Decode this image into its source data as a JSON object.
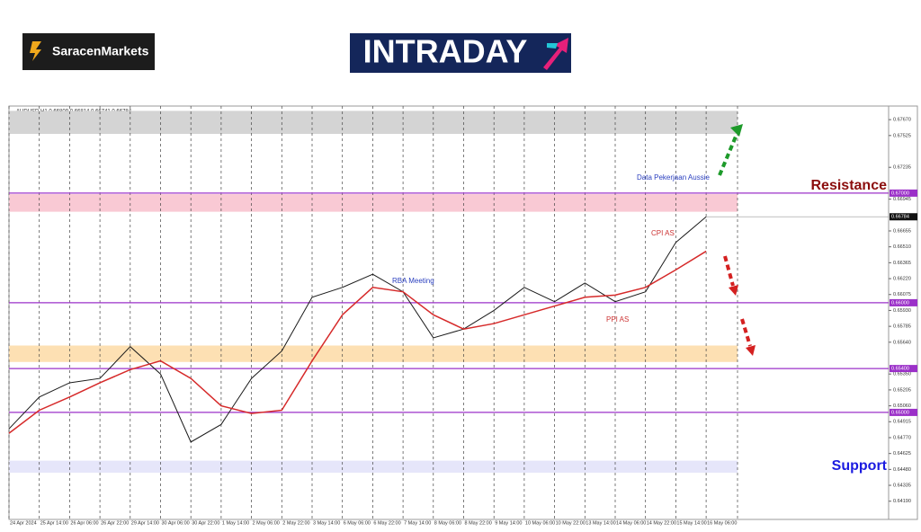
{
  "header": {
    "brand": "SaracenMarkets",
    "logo": "INTRADAY"
  },
  "chart_data": {
    "type": "line",
    "title": "AUDUSD,H1 0.66809 0.66814 0.66741 0.66784",
    "categories": [
      "24 Apr 2024",
      "25 Apr 14:00",
      "26 Apr 06:00",
      "26 Apr 22:00",
      "29 Apr 14:00",
      "30 Apr 06:00",
      "30 Apr 22:00",
      "1 May 14:00",
      "2 May 06:00",
      "2 May 22:00",
      "3 May 14:00",
      "6 May 06:00",
      "6 May 22:00",
      "7 May 14:00",
      "8 May 06:00",
      "8 May 22:00",
      "9 May 14:00",
      "10 May 06:00",
      "10 May 22:00",
      "13 May 14:00",
      "14 May 06:00",
      "14 May 22:00",
      "15 May 14:00",
      "16 May 06:00"
    ],
    "series": [
      {
        "name": "AUDUSD",
        "color": "#1a1a1a",
        "values": [
          0.6485,
          0.6514,
          0.6527,
          0.6531,
          0.656,
          0.6535,
          0.6473,
          0.6489,
          0.6531,
          0.6556,
          0.6605,
          0.6614,
          0.6626,
          0.661,
          0.6568,
          0.6576,
          0.6593,
          0.6614,
          0.6601,
          0.6618,
          0.6601,
          0.661,
          0.6655,
          0.66784
        ]
      },
      {
        "name": "MA",
        "color": "#d62a2a",
        "values": [
          0.6481,
          0.6502,
          0.6514,
          0.6527,
          0.6539,
          0.6547,
          0.6531,
          0.6506,
          0.6499,
          0.6502,
          0.6547,
          0.6589,
          0.6614,
          0.661,
          0.6589,
          0.6576,
          0.6581,
          0.6589,
          0.6597,
          0.6605,
          0.6607,
          0.6614,
          0.663,
          0.6647
        ]
      }
    ],
    "last_price": 0.66784,
    "ylim": [
      0.64024,
      0.67794
    ],
    "yticks": [
      {
        "value": 0.6767,
        "label": "0.67670"
      },
      {
        "value": 0.67525,
        "label": "0.67525"
      },
      {
        "value": 0.67235,
        "label": "0.67235"
      },
      {
        "value": 0.66945,
        "label": "0.66945"
      },
      {
        "value": 0.66655,
        "label": "0.66655"
      },
      {
        "value": 0.6651,
        "label": "0.66510"
      },
      {
        "value": 0.66365,
        "label": "0.66365"
      },
      {
        "value": 0.6622,
        "label": "0.66220"
      },
      {
        "value": 0.66075,
        "label": "0.66075"
      },
      {
        "value": 0.6593,
        "label": "0.65930"
      },
      {
        "value": 0.65785,
        "label": "0.65785"
      },
      {
        "value": 0.6564,
        "label": "0.65640"
      },
      {
        "value": 0.6535,
        "label": "0.65350"
      },
      {
        "value": 0.65205,
        "label": "0.65205"
      },
      {
        "value": 0.6506,
        "label": "0.65060"
      },
      {
        "value": 0.64915,
        "label": "0.64915"
      },
      {
        "value": 0.6477,
        "label": "0.64770"
      },
      {
        "value": 0.64625,
        "label": "0.64625"
      },
      {
        "value": 0.6448,
        "label": "0.64480"
      },
      {
        "value": 0.64335,
        "label": "0.64335"
      },
      {
        "value": 0.6419,
        "label": "0.64190"
      }
    ],
    "levels": [
      {
        "value": 0.67,
        "label": "0.67000"
      },
      {
        "value": 0.66,
        "label": "0.66000"
      },
      {
        "value": 0.654,
        "label": "0.65400"
      },
      {
        "value": 0.65,
        "label": "0.65000"
      }
    ],
    "level_color": "#9b30c8",
    "zones": [
      {
        "range": [
          0.6754,
          0.6775
        ],
        "color": "#d4d4d4"
      },
      {
        "range": [
          0.6683,
          0.6699
        ],
        "color": "#f9c9d4"
      },
      {
        "range": [
          0.6546,
          0.6561
        ],
        "color": "#fde0b3"
      },
      {
        "range": [
          0.6445,
          0.6456
        ],
        "color": "#e6e6fa"
      }
    ],
    "annotations": [
      "Data Pekerjaan Aussie",
      "CPI AS",
      "RBA Meeting",
      "PPI AS"
    ],
    "resistance_label": "Resistance",
    "support_label": "Support",
    "grid": true
  }
}
